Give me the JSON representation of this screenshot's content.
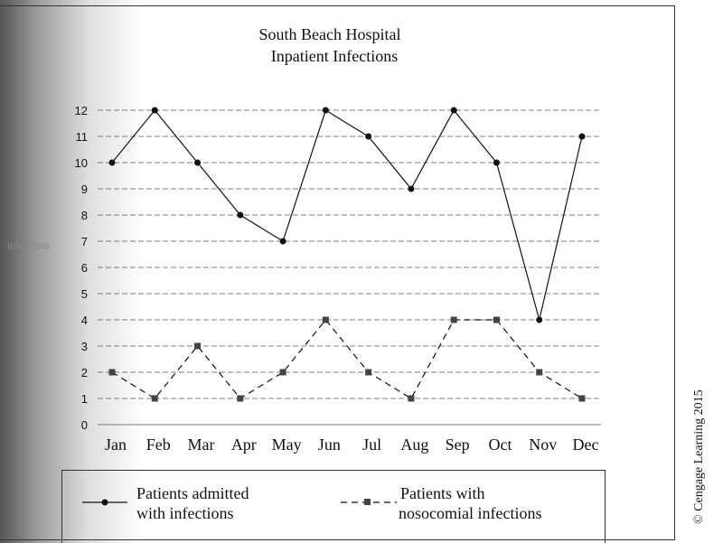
{
  "chart_data": {
    "type": "line",
    "title": "South Beach Hospital",
    "subtitle": "Inpatient Infections",
    "ylabel": "Infections",
    "xlabel": "",
    "categories": [
      "Jan",
      "Feb",
      "Mar",
      "Apr",
      "May",
      "Jun",
      "Jul",
      "Aug",
      "Sep",
      "Oct",
      "Nov",
      "Dec"
    ],
    "ylim": [
      0,
      12
    ],
    "yticks": [
      "0",
      "1",
      "2",
      "3",
      "4",
      "5",
      "6",
      "7",
      "8",
      "9",
      "10",
      "11",
      "12"
    ],
    "grid": true,
    "legend_position": "bottom",
    "series": [
      {
        "name": "Patients admitted with infections",
        "legend_lines": [
          "Patients admitted",
          "with infections"
        ],
        "style": "solid",
        "marker": "circle",
        "values": [
          10,
          12,
          10,
          8,
          7,
          12,
          11,
          9,
          12,
          10,
          4,
          11
        ]
      },
      {
        "name": "Patients with nosocomial infections",
        "legend_lines": [
          "Patients with",
          "nosocomial infections"
        ],
        "style": "dashed",
        "marker": "square",
        "values": [
          2,
          1,
          3,
          1,
          2,
          4,
          2,
          1,
          4,
          4,
          2,
          1
        ]
      }
    ]
  },
  "copyright": "© Cengage Learning 2015"
}
